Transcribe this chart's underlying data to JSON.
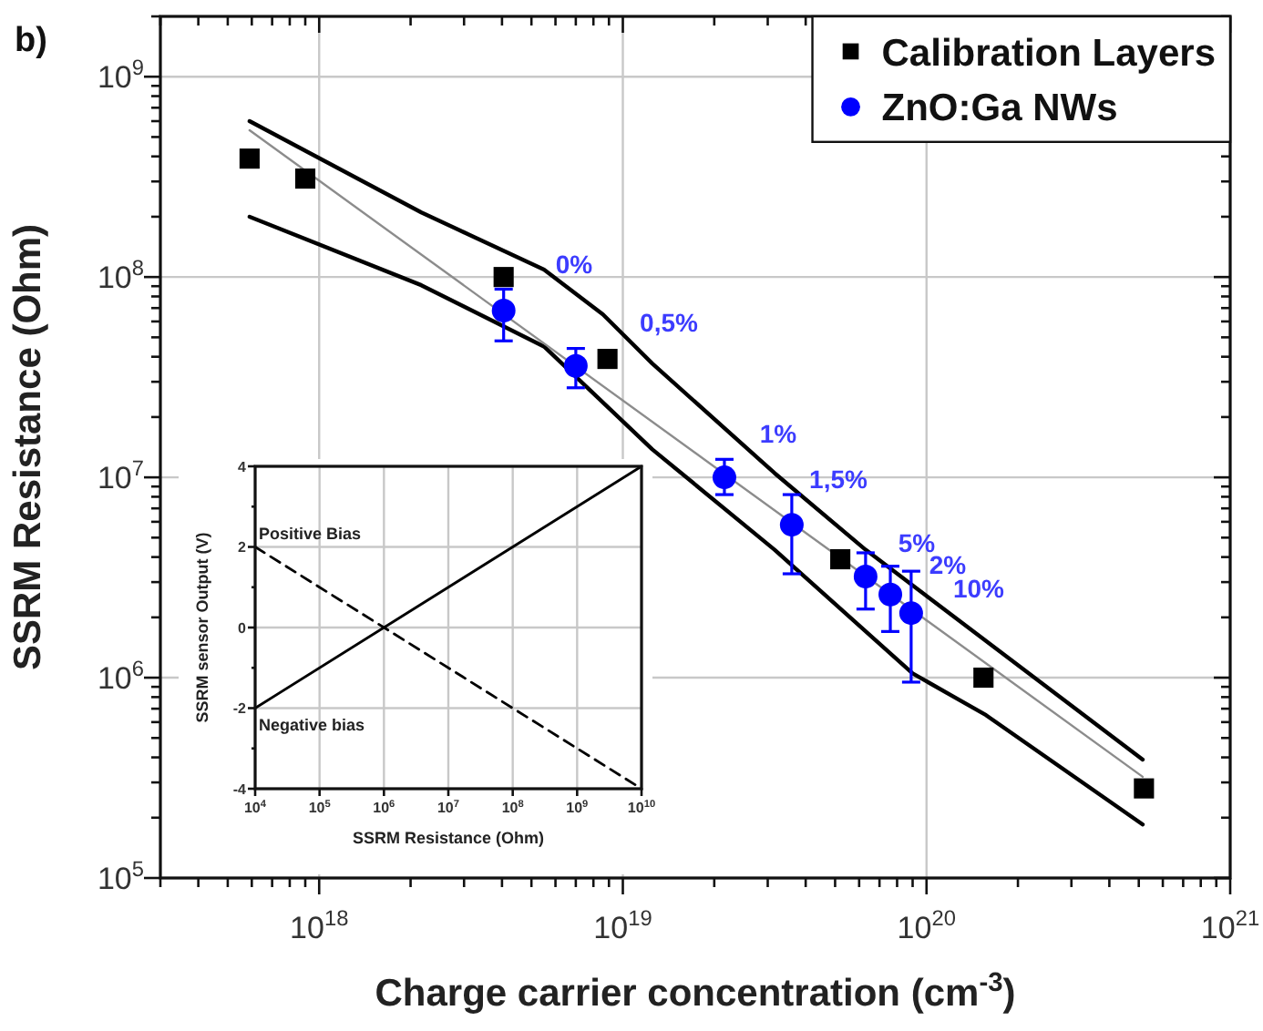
{
  "chart_data": [
    {
      "type": "scatter",
      "title": "b)",
      "xlabel": "Charge carrier concentration (cm$^{-3}$)",
      "ylabel": "SSRM Resistance (Ohm)",
      "log": "xy",
      "grid": true,
      "legend": "top right",
      "xlim": [
        3e+17,
        1e+21
      ],
      "ylim": [
        100000.0,
        2000000000.0
      ],
      "xticks": [
        {
          "value": 3e+17,
          "label": null
        },
        {
          "value": 4e+17,
          "label": null
        },
        {
          "value": 5e+17,
          "label": null
        },
        {
          "value": 6e+17,
          "label": null
        },
        {
          "value": 7e+17,
          "label": null
        },
        {
          "value": 8e+17,
          "label": null
        },
        {
          "value": 9e+17,
          "label": null
        },
        {
          "value": 1e+18,
          "label": "10$^{18}$"
        },
        {
          "value": 2e+18,
          "label": null
        },
        {
          "value": 3e+18,
          "label": null
        },
        {
          "value": 4e+18,
          "label": null
        },
        {
          "value": 5e+18,
          "label": null
        },
        {
          "value": 6e+18,
          "label": null
        },
        {
          "value": 7e+18,
          "label": null
        },
        {
          "value": 8e+18,
          "label": null
        },
        {
          "value": 9e+18,
          "label": null
        },
        {
          "value": 1e+19,
          "label": "10$^{19}$"
        },
        {
          "value": 2e+19,
          "label": null
        },
        {
          "value": 3e+19,
          "label": null
        },
        {
          "value": 4e+19,
          "label": null
        },
        {
          "value": 5e+19,
          "label": null
        },
        {
          "value": 6e+19,
          "label": null
        },
        {
          "value": 7e+19,
          "label": null
        },
        {
          "value": 8e+19,
          "label": null
        },
        {
          "value": 9e+19,
          "label": null
        },
        {
          "value": 1e+20,
          "label": "10$^{20}$"
        },
        {
          "value": 2e+20,
          "label": null
        },
        {
          "value": 3e+20,
          "label": null
        },
        {
          "value": 4e+20,
          "label": null
        },
        {
          "value": 5e+20,
          "label": null
        },
        {
          "value": 6e+20,
          "label": null
        },
        {
          "value": 7e+20,
          "label": null
        },
        {
          "value": 8e+20,
          "label": null
        },
        {
          "value": 9e+20,
          "label": null
        },
        {
          "value": 1e+21,
          "label": "10$^{21}$"
        }
      ],
      "yticks": [
        {
          "value": 100000.0,
          "label": "10$^{5}$"
        },
        {
          "value": 200000.0,
          "label": null
        },
        {
          "value": 300000.0,
          "label": null
        },
        {
          "value": 400000.0,
          "label": null
        },
        {
          "value": 500000.0,
          "label": null
        },
        {
          "value": 600000.0,
          "label": null
        },
        {
          "value": 700000.0,
          "label": null
        },
        {
          "value": 800000.0,
          "label": null
        },
        {
          "value": 900000.0,
          "label": null
        },
        {
          "value": 1000000.0,
          "label": "10$^{6}$"
        },
        {
          "value": 2000000.0,
          "label": null
        },
        {
          "value": 3000000.0,
          "label": null
        },
        {
          "value": 4000000.0,
          "label": null
        },
        {
          "value": 5000000.0,
          "label": null
        },
        {
          "value": 6000000.0,
          "label": null
        },
        {
          "value": 7000000.0,
          "label": null
        },
        {
          "value": 8000000.0,
          "label": null
        },
        {
          "value": 9000000.0,
          "label": null
        },
        {
          "value": 10000000.0,
          "label": "10$^{7}$"
        },
        {
          "value": 20000000.0,
          "label": null
        },
        {
          "value": 30000000.0,
          "label": null
        },
        {
          "value": 40000000.0,
          "label": null
        },
        {
          "value": 50000000.0,
          "label": null
        },
        {
          "value": 60000000.0,
          "label": null
        },
        {
          "value": 70000000.0,
          "label": null
        },
        {
          "value": 80000000.0,
          "label": null
        },
        {
          "value": 90000000.0,
          "label": null
        },
        {
          "value": 100000000.0,
          "label": "10$^{8}$"
        },
        {
          "value": 200000000.0,
          "label": null
        },
        {
          "value": 300000000.0,
          "label": null
        },
        {
          "value": 400000000.0,
          "label": null
        },
        {
          "value": 500000000.0,
          "label": null
        },
        {
          "value": 600000000.0,
          "label": null
        },
        {
          "value": 700000000.0,
          "label": null
        },
        {
          "value": 800000000.0,
          "label": null
        },
        {
          "value": 900000000.0,
          "label": null
        },
        {
          "value": 1000000000.0,
          "label": "10$^{9}$"
        },
        {
          "value": 2000000000.0,
          "label": null
        }
      ],
      "series": [
        {
          "type": "line",
          "color": "#000000",
          "x": [
            5.9e+17,
            2.17e+18,
            5.5e+18,
            8.6e+18,
            1.25e+19,
            3.16e+19,
            6.3e+19,
            5.15e+20
          ],
          "values": [
            600000000.0,
            210000000.0,
            109000000.0,
            65000000.0,
            37000000.0,
            10500000.0,
            4350000.0,
            390000.0
          ]
        },
        {
          "type": "line",
          "color": "#000000",
          "x": [
            5.9e+17,
            2.17e+18,
            5.5e+18,
            1.25e+19,
            3.16e+19,
            9e+19,
            1.57e+20,
            5.15e+20
          ],
          "values": [
            200000000.0,
            91000000.0,
            45000000.0,
            13800000.0,
            4350000.0,
            1050000.0,
            650000.0,
            185000.0
          ]
        },
        {
          "type": "line",
          "color": "#8c8c8c",
          "x": [
            5.9e+17,
            5.15e+20
          ],
          "values": [
            540000000.0,
            320000.0
          ]
        },
        {
          "name": "Calibration Layers",
          "type": "scatter",
          "marker": "square",
          "color": "#000000",
          "x": [
            5.9e+17,
            9e+17,
            4.05e+18,
            8.9e+18,
            5.2e+19,
            1.54e+20,
            5.2e+20
          ],
          "values": [
            390000000.0,
            310000000.0,
            100000000.0,
            39000000.0,
            3900000.0,
            1000000.0,
            280000.0
          ]
        },
        {
          "name": "ZnO:Ga NWs",
          "type": "scatter",
          "marker": "circle",
          "color": "#0000ff",
          "x": [
            4.05e+18,
            7e+18,
            2.16e+19,
            3.6e+19,
            6.3e+19,
            7.6e+19,
            8.9e+19
          ],
          "values": [
            68000000.0,
            36000000.0,
            10000000.0,
            5800000.0,
            3200000.0,
            2600000.0,
            2100000.0
          ],
          "errors": [
            [
              48000000.0,
              87000000.0
            ],
            [
              28000000.0,
              44000000.0
            ],
            [
              8200000.0,
              12300000.0
            ],
            [
              3300000.0,
              8200000.0
            ],
            [
              2200000.0,
              4200000.0
            ],
            [
              1700000.0,
              3600000.0
            ],
            [
              950000.0,
              3400000.0
            ]
          ]
        }
      ],
      "annotations": [
        "0%",
        "0,5%",
        "1%",
        "1,5%",
        "5%",
        "2%",
        "10%"
      ]
    },
    {
      "type": "line",
      "xlabel": "SSRM Resistance (Ohm)",
      "ylabel": "SSRM sensor Output (V)",
      "log": "x",
      "grid": true,
      "xlim": [
        10000.0,
        10000000000.0
      ],
      "ylim": [
        -4,
        4
      ],
      "xticks": [
        {
          "value": 10000.0,
          "label": "10$^{4}$"
        },
        {
          "value": 100000.0,
          "label": "10$^{5}$"
        },
        {
          "value": 1000000.0,
          "label": "10$^{6}$"
        },
        {
          "value": 10000000.0,
          "label": "10$^{7}$"
        },
        {
          "value": 100000000.0,
          "label": "10$^{8}$"
        },
        {
          "value": 1000000000.0,
          "label": "10$^{9}$"
        },
        {
          "value": 10000000000.0,
          "label": "10$^{10}$"
        }
      ],
      "yticks": [
        -4,
        {
          "value": -3,
          "label": null
        },
        -2,
        {
          "value": -1,
          "label": null
        },
        0,
        {
          "value": 1,
          "label": null
        },
        2,
        {
          "value": 3,
          "label": null
        },
        4
      ],
      "series": [
        {
          "color": "#000000",
          "line_style": "solid",
          "x": [
            10000.0,
            10000000000.0
          ],
          "values": [
            -2,
            4
          ]
        },
        {
          "color": "#000000",
          "line_style": "dashed",
          "x": [
            10000.0,
            10000000000.0
          ],
          "values": [
            2,
            -4
          ]
        }
      ],
      "annotations": [
        "Positive Bias",
        "Negative bias"
      ]
    }
  ]
}
